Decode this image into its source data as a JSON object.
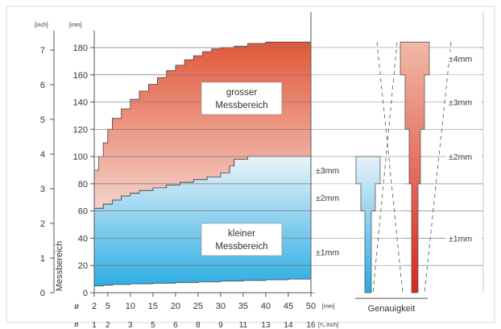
{
  "chart_data": {
    "type": "area",
    "axes": {
      "inch_unit": "[inch]",
      "mm_unit": "[mm]",
      "ylabel": "Messbereich",
      "inch_ticks": [
        "0",
        "1",
        "2",
        "3",
        "4",
        "5",
        "6",
        "7"
      ],
      "mm_ticks": [
        "0",
        "20",
        "40",
        "60",
        "80",
        "100",
        "120",
        "140",
        "160",
        "180"
      ],
      "x_mm_ticks": [
        "2",
        "5",
        "10",
        "15",
        "20",
        "25",
        "30",
        "35",
        "40",
        "45",
        "50"
      ],
      "x_mm_prefix": "ø",
      "x_mm_unit": "[mm]",
      "x_inch_ticks": [
        "1",
        "2",
        "3",
        "5",
        "6",
        "8",
        "9",
        "11",
        "13",
        "14",
        "16"
      ],
      "x_inch_prefix": "ø",
      "x_inch_unit": "[¹⁄₈ inch]"
    },
    "ylim_mm": [
      0,
      190
    ],
    "xlim_mm": [
      2,
      50
    ],
    "grid": true,
    "series": [
      {
        "name": "grosser Messbereich",
        "label_lines": [
          "grosser",
          "Messbereich"
        ],
        "color_top": "#e2583a",
        "color_bottom": "#f4d3c9",
        "upper": [
          [
            2,
            90
          ],
          [
            3,
            100
          ],
          [
            4,
            110
          ],
          [
            5,
            120
          ],
          [
            6,
            128
          ],
          [
            8,
            135
          ],
          [
            10,
            142
          ],
          [
            12,
            148
          ],
          [
            14,
            153
          ],
          [
            16,
            158
          ],
          [
            18,
            163
          ],
          [
            20,
            167
          ],
          [
            22,
            171
          ],
          [
            24,
            174
          ],
          [
            26,
            177
          ],
          [
            28,
            179
          ],
          [
            30,
            180
          ],
          [
            33,
            181
          ],
          [
            36,
            183
          ],
          [
            40,
            184
          ],
          [
            45,
            184
          ],
          [
            50,
            184
          ]
        ],
        "lower": [
          [
            2,
            62
          ],
          [
            4,
            65
          ],
          [
            6,
            68
          ],
          [
            8,
            71
          ],
          [
            10,
            73
          ],
          [
            12,
            75
          ],
          [
            15,
            77
          ],
          [
            18,
            79
          ],
          [
            21,
            81
          ],
          [
            24,
            83
          ],
          [
            27,
            85
          ],
          [
            30,
            88
          ],
          [
            32,
            93
          ],
          [
            33,
            98
          ],
          [
            36,
            100
          ],
          [
            50,
            100
          ]
        ]
      },
      {
        "name": "kleiner Messbereich",
        "label_lines": [
          "kleiner",
          "Messbereich"
        ],
        "color_top": "#e9f3fa",
        "color_bottom": "#2eaee3",
        "upper": [
          [
            2,
            62
          ],
          [
            4,
            65
          ],
          [
            6,
            68
          ],
          [
            8,
            71
          ],
          [
            10,
            73
          ],
          [
            12,
            75
          ],
          [
            15,
            77
          ],
          [
            18,
            79
          ],
          [
            21,
            81
          ],
          [
            24,
            83
          ],
          [
            27,
            85
          ],
          [
            30,
            88
          ],
          [
            32,
            93
          ],
          [
            33,
            98
          ],
          [
            36,
            100
          ],
          [
            50,
            100
          ]
        ],
        "lower": [
          [
            2,
            5
          ],
          [
            4,
            5.5
          ],
          [
            6,
            6
          ],
          [
            10,
            6.5
          ],
          [
            15,
            7
          ],
          [
            20,
            7.5
          ],
          [
            25,
            8
          ],
          [
            30,
            8.5
          ],
          [
            35,
            9
          ],
          [
            40,
            9.5
          ],
          [
            45,
            10
          ],
          [
            50,
            10
          ]
        ]
      }
    ],
    "accuracy": {
      "title": "Genauigkeit",
      "small_range": [
        {
          "label": "±3mm",
          "from_mm": 80,
          "to_mm": 100
        },
        {
          "label": "±2mm",
          "from_mm": 60,
          "to_mm": 80
        },
        {
          "label": "±1mm",
          "from_mm": 0,
          "to_mm": 60
        }
      ],
      "large_range": [
        {
          "label": "±4mm",
          "from_mm": 160,
          "to_mm": 184
        },
        {
          "label": "±3mm",
          "from_mm": 120,
          "to_mm": 160
        },
        {
          "label": "±2mm",
          "from_mm": 80,
          "to_mm": 120
        },
        {
          "label": "±1mm",
          "from_mm": 0,
          "to_mm": 80
        }
      ]
    }
  }
}
